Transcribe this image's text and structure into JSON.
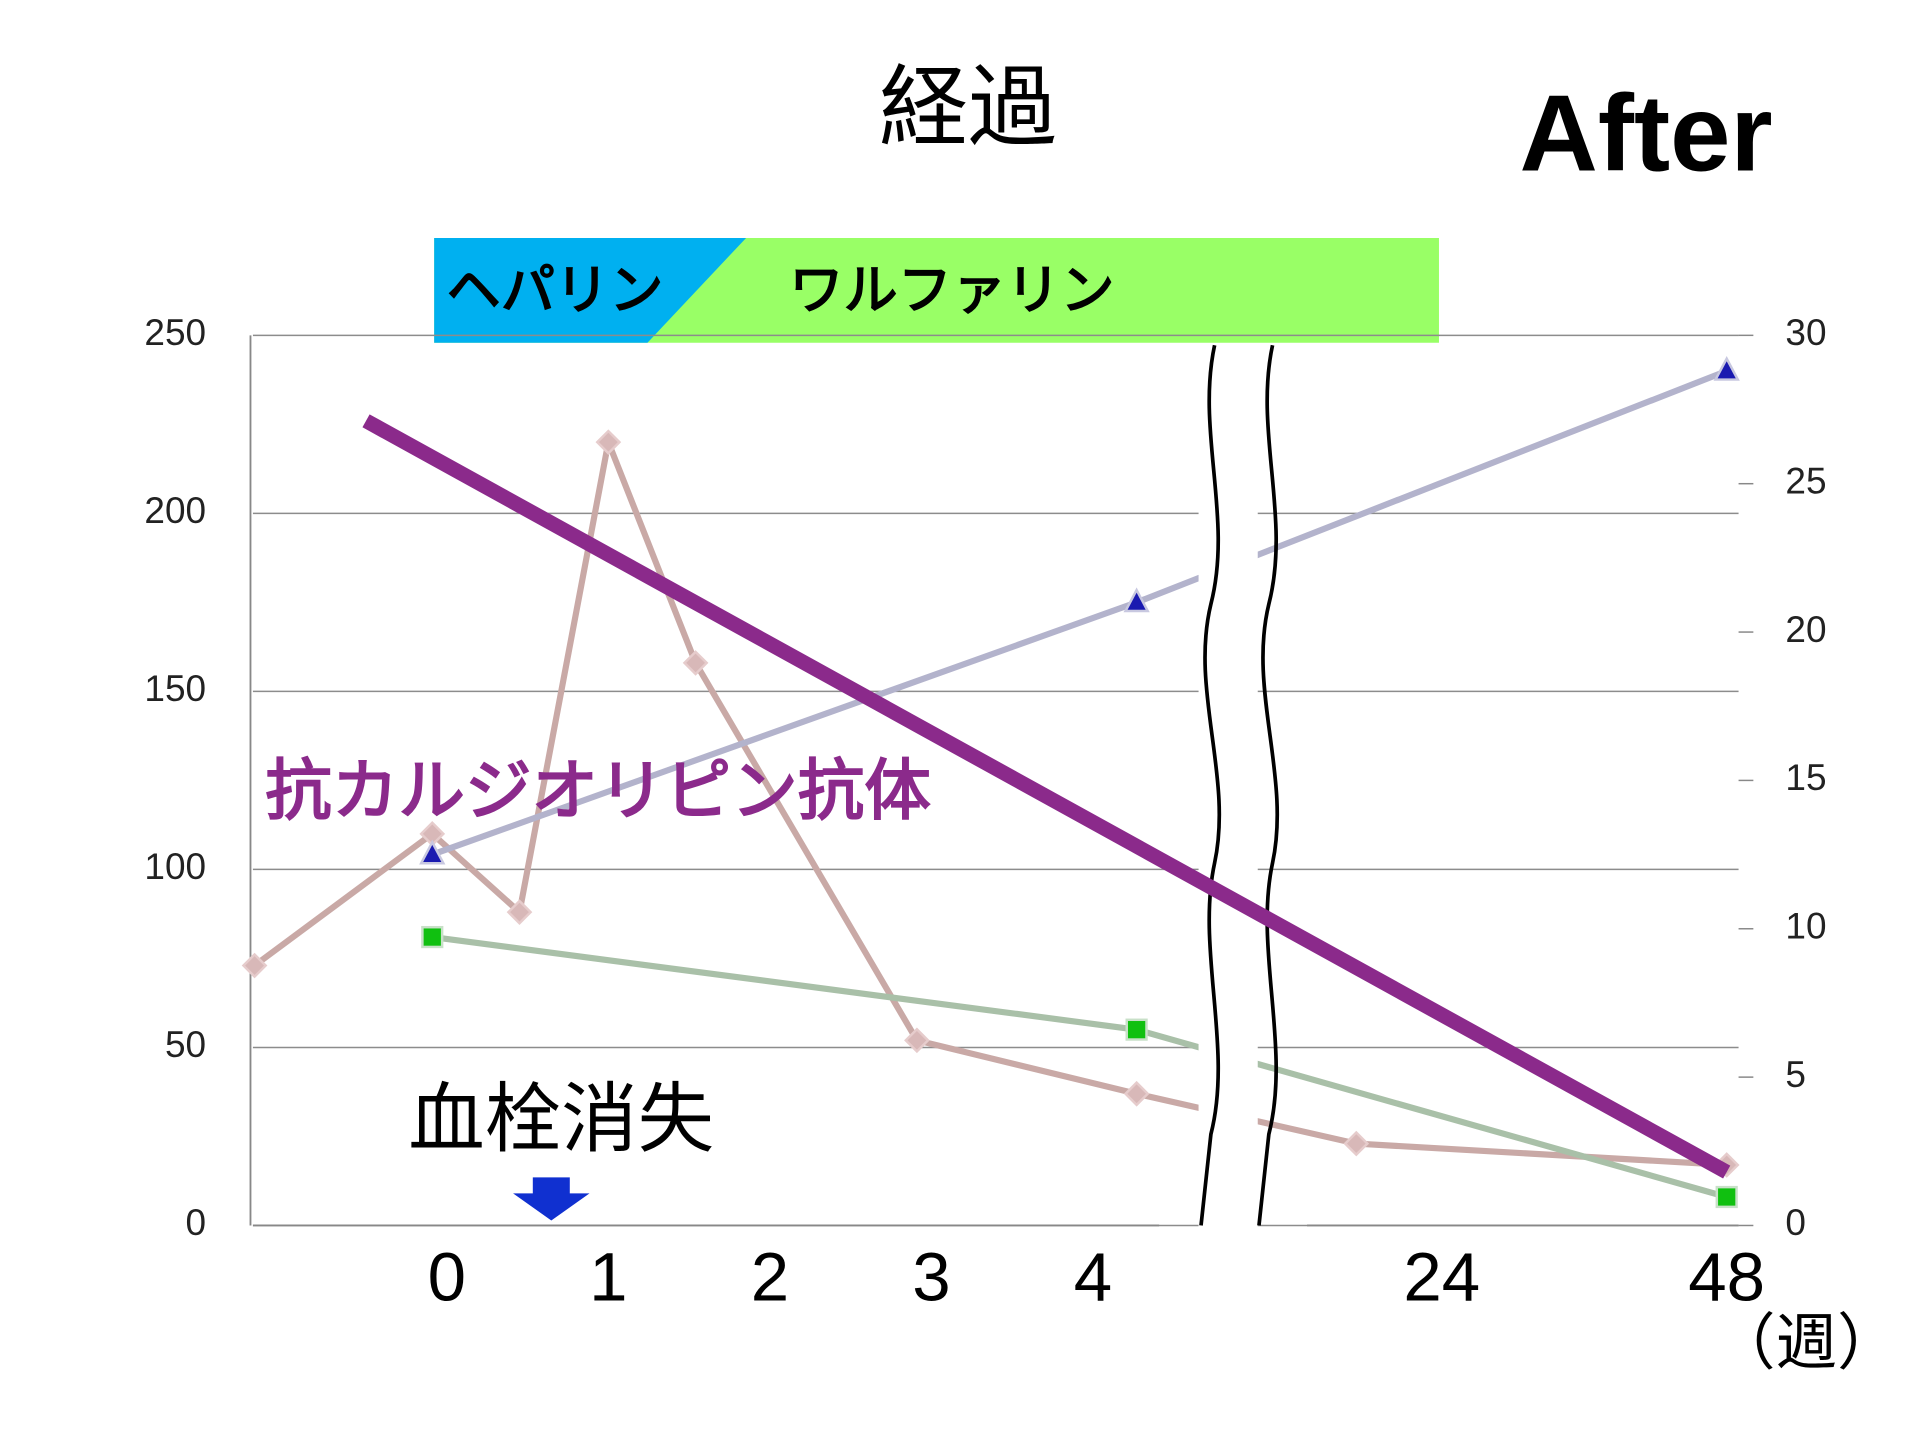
{
  "chart_data": {
    "type": "line",
    "title": "経過",
    "badge": "After",
    "phases": [
      "ヘパリン",
      "ワルファリン"
    ],
    "annotation": "血栓消失",
    "x_unit": "（週）",
    "xlim": [
      -1.2,
      49
    ],
    "x_break": [
      4.6,
      8.5
    ],
    "xticks": [
      0,
      1,
      2,
      3,
      4,
      24,
      48
    ],
    "ylim": [
      0,
      250
    ],
    "yticks": [
      0,
      50,
      100,
      150,
      200,
      250
    ],
    "y2lim": [
      0,
      30
    ],
    "y2ticks": [
      0,
      5,
      10,
      15,
      20,
      25,
      30
    ],
    "grid": true,
    "series": [
      {
        "color": "#c9a9a6",
        "marker": "diamond",
        "x": [
          -1.19,
          -0.09,
          0.45,
          1.0,
          1.54,
          2.91,
          4.27,
          16.8,
          48
        ],
        "values": [
          73,
          110,
          88,
          220,
          158,
          52,
          37,
          23,
          17
        ]
      },
      {
        "color": "#b3b3cc",
        "marker": "triangle",
        "axis": "y2",
        "x": [
          -0.09,
          4.27,
          48
        ],
        "values": [
          12.5,
          21,
          28.8
        ]
      },
      {
        "color": "#a9c0a8",
        "marker": "square",
        "x": [
          -0.09,
          4.27,
          48
        ],
        "values": [
          81,
          55,
          8
        ]
      },
      {
        "name": "抗カルジオリピン抗体",
        "color": "#8b2a8b",
        "marker": "none",
        "x": [
          -0.5,
          48
        ],
        "values": [
          226,
          15
        ]
      }
    ]
  }
}
